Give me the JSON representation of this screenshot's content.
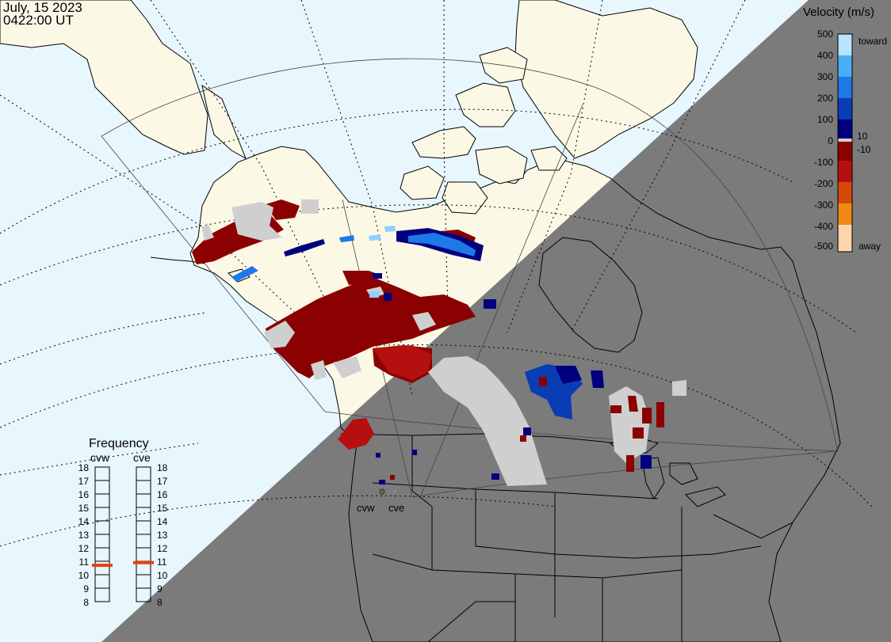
{
  "header": {
    "date": "July, 15 2023",
    "time": "0422:00 UT"
  },
  "colors": {
    "ocean_day": "#e8f6fd",
    "land_day": "#fbf9e6",
    "night": "#7b7b7b",
    "ground_scatter": "#cfcfcf",
    "away_dark": "#8b0000",
    "away_mid": "#b51010",
    "toward_dark": "#00007f",
    "toward_mid": "#0a3cb4",
    "toward_bright": "#1e78e6",
    "toward_light": "#8fd0ff",
    "freq_marker": "#e84010"
  },
  "legend": {
    "title": "Velocity (m/s)",
    "toward_label": "toward",
    "away_label": "away",
    "ticks": [
      "500",
      "400",
      "300",
      "200",
      "100",
      "10",
      "0",
      "-10",
      "-100",
      "-200",
      "-300",
      "-400",
      "-500"
    ]
  },
  "radars": {
    "west": "cvw",
    "east": "cve"
  },
  "frequency": {
    "title": "Frequency",
    "scale": [
      "18",
      "17",
      "16",
      "15",
      "14",
      "13",
      "12",
      "11",
      "10",
      "9",
      "8"
    ],
    "channels": [
      {
        "name": "cvw",
        "value": 10.7
      },
      {
        "name": "cve",
        "value": 10.9
      }
    ]
  },
  "icons": {
    "radar_marker": "radar-site-icon"
  }
}
